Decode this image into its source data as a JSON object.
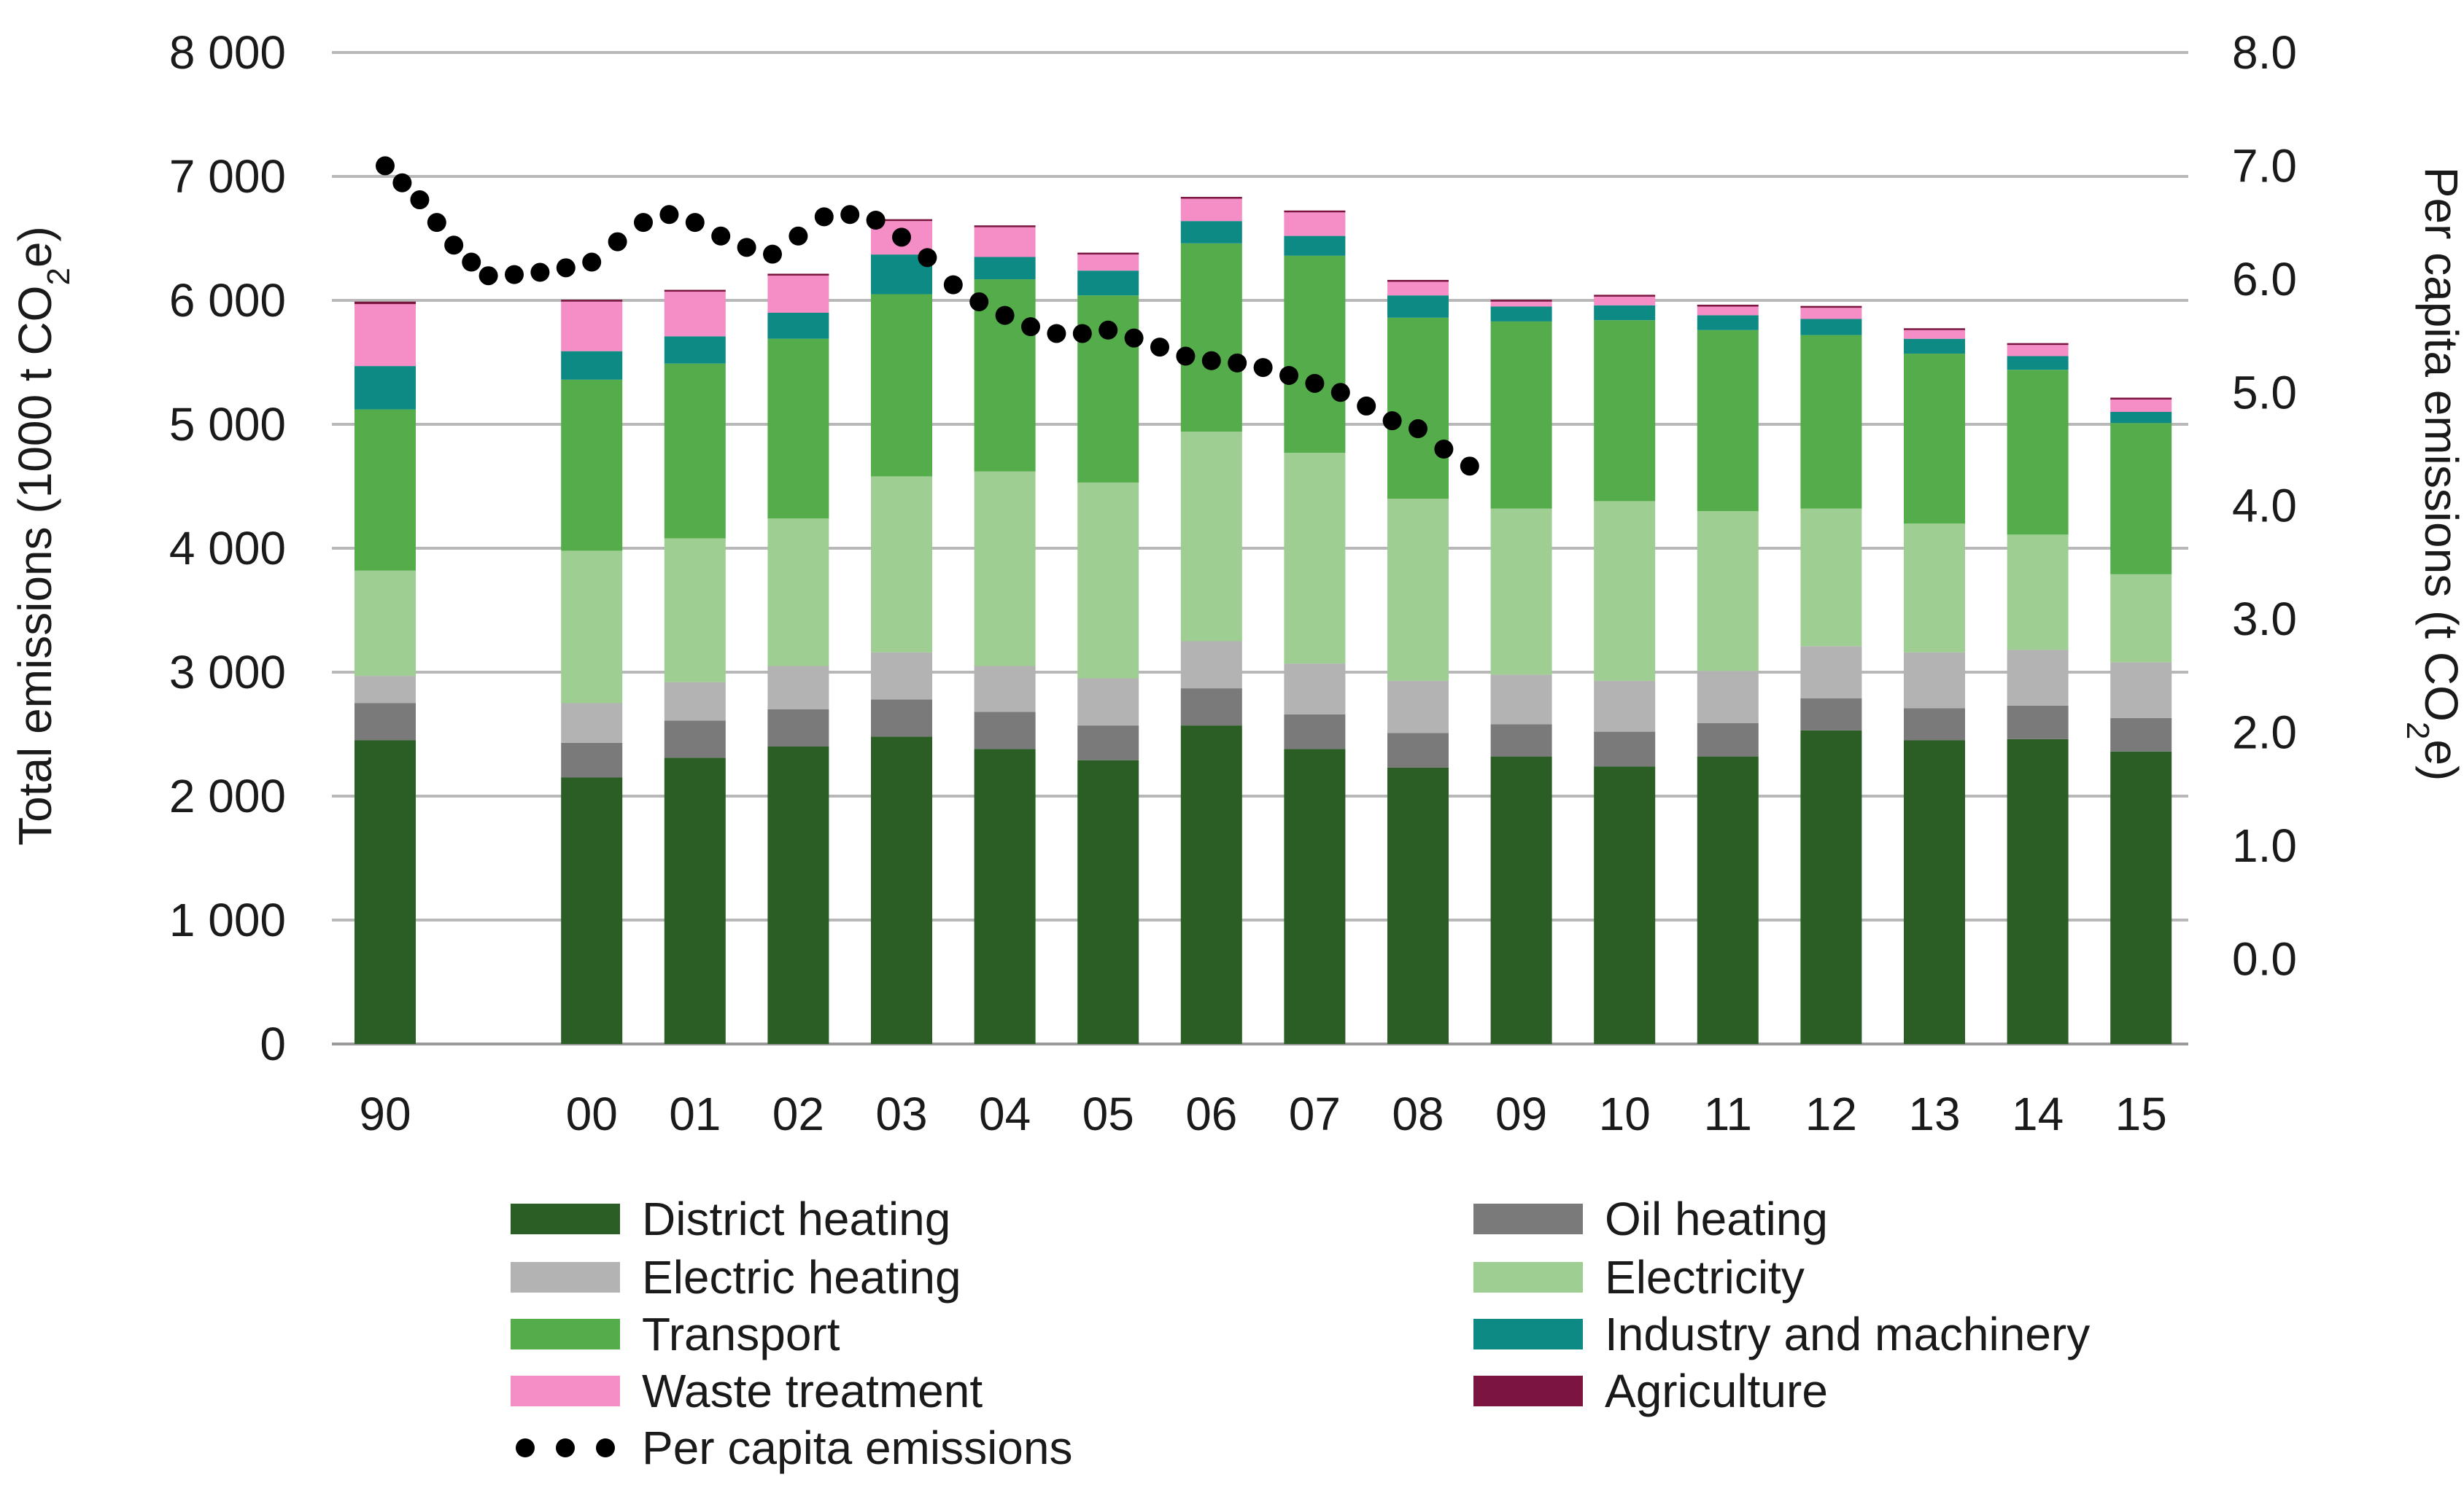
{
  "chart_data": {
    "type": "bar",
    "stacked": true,
    "categories": [
      "90",
      "00",
      "01",
      "02",
      "03",
      "04",
      "05",
      "06",
      "07",
      "08",
      "09",
      "10",
      "11",
      "12",
      "13",
      "14",
      "15"
    ],
    "series": [
      {
        "name": "District heating",
        "color": "#2a5e25",
        "values": [
          2450,
          2150,
          2310,
          2400,
          2480,
          2380,
          2290,
          2570,
          2380,
          2230,
          2320,
          2240,
          2320,
          2530,
          2450,
          2460,
          2360
        ]
      },
      {
        "name": "Oil heating",
        "color": "#7a7a7a",
        "values": [
          300,
          280,
          300,
          300,
          300,
          300,
          280,
          300,
          280,
          280,
          260,
          280,
          270,
          260,
          260,
          270,
          270
        ]
      },
      {
        "name": "Electric heating",
        "color": "#b3b3b3",
        "values": [
          220,
          320,
          310,
          350,
          380,
          370,
          380,
          380,
          410,
          420,
          400,
          410,
          420,
          420,
          450,
          450,
          450
        ]
      },
      {
        "name": "Electricity",
        "color": "#9fce93",
        "values": [
          850,
          1230,
          1160,
          1190,
          1420,
          1570,
          1580,
          1690,
          1700,
          1470,
          1340,
          1450,
          1290,
          1110,
          1040,
          930,
          710
        ]
      },
      {
        "name": "Transport",
        "color": "#55ac4b",
        "values": [
          1300,
          1380,
          1410,
          1450,
          1470,
          1550,
          1510,
          1520,
          1590,
          1460,
          1510,
          1460,
          1460,
          1400,
          1370,
          1330,
          1220
        ]
      },
      {
        "name": "Industry and machinery",
        "color": "#0e8a84",
        "values": [
          350,
          230,
          220,
          210,
          320,
          180,
          200,
          180,
          160,
          180,
          120,
          120,
          120,
          130,
          120,
          110,
          90
        ]
      },
      {
        "name": "Waste treatment",
        "color": "#f58ec6",
        "values": [
          500,
          400,
          360,
          300,
          270,
          240,
          130,
          180,
          190,
          110,
          40,
          70,
          70,
          90,
          70,
          90,
          100
        ]
      },
      {
        "name": "Agriculture",
        "color": "#7c1440",
        "values": [
          20,
          15,
          15,
          15,
          15,
          15,
          15,
          15,
          15,
          15,
          15,
          15,
          15,
          15,
          15,
          15,
          15
        ]
      }
    ],
    "per_capita": {
      "name": "Per capita emissions",
      "color": "#000000",
      "points": [
        {
          "x": 0,
          "y": 7.0
        },
        {
          "x": 0.33,
          "y": 6.85
        },
        {
          "x": 0.67,
          "y": 6.7
        },
        {
          "x": 1.0,
          "y": 6.5
        },
        {
          "x": 1.33,
          "y": 6.3
        },
        {
          "x": 1.67,
          "y": 6.15
        },
        {
          "x": 2,
          "y": 6.03
        },
        {
          "x": 2.5,
          "y": 6.04
        },
        {
          "x": 3,
          "y": 6.06
        },
        {
          "x": 3.5,
          "y": 6.1
        },
        {
          "x": 4,
          "y": 6.15
        },
        {
          "x": 4.5,
          "y": 6.33
        },
        {
          "x": 5,
          "y": 6.5
        },
        {
          "x": 5.5,
          "y": 6.57
        },
        {
          "x": 6,
          "y": 6.5
        },
        {
          "x": 6.5,
          "y": 6.38
        },
        {
          "x": 7,
          "y": 6.28
        },
        {
          "x": 7.5,
          "y": 6.22
        },
        {
          "x": 8,
          "y": 6.38
        },
        {
          "x": 8.5,
          "y": 6.55
        },
        {
          "x": 9,
          "y": 6.57
        },
        {
          "x": 9.5,
          "y": 6.52
        },
        {
          "x": 10,
          "y": 6.37
        },
        {
          "x": 10.5,
          "y": 6.19
        },
        {
          "x": 11,
          "y": 5.95
        },
        {
          "x": 11.5,
          "y": 5.8
        },
        {
          "x": 12,
          "y": 5.68
        },
        {
          "x": 12.5,
          "y": 5.58
        },
        {
          "x": 13,
          "y": 5.52
        },
        {
          "x": 13.5,
          "y": 5.52
        },
        {
          "x": 14,
          "y": 5.55
        },
        {
          "x": 14.5,
          "y": 5.48
        },
        {
          "x": 15,
          "y": 5.4
        },
        {
          "x": 15.5,
          "y": 5.32
        },
        {
          "x": 16,
          "y": 5.28
        },
        {
          "x": 16.5,
          "y": 5.26
        },
        {
          "x": 17,
          "y": 5.22
        },
        {
          "x": 17.5,
          "y": 5.15
        },
        {
          "x": 18,
          "y": 5.08
        },
        {
          "x": 18.5,
          "y": 5.0
        },
        {
          "x": 19,
          "y": 4.88
        },
        {
          "x": 19.5,
          "y": 4.75
        },
        {
          "x": 20,
          "y": 4.68
        },
        {
          "x": 20.5,
          "y": 4.5
        },
        {
          "x": 21,
          "y": 4.35
        }
      ]
    },
    "ylabel": "Total emissions (1000 t CO",
    "ylabel_sub": "2",
    "ylabel_end": "e)",
    "ylim": [
      0,
      8000
    ],
    "yticks": [
      "0",
      "1 000",
      "2 000",
      "3 000",
      "4 000",
      "5 000",
      "6 000",
      "7 000",
      "8 000"
    ],
    "y2label": "Per capita emissions (t CO",
    "y2label_sub": "2",
    "y2label_end": "e)",
    "y2lim": [
      -0.75,
      8.0
    ],
    "y2ticks": [
      "0.0",
      "1.0",
      "2.0",
      "3.0",
      "4.0",
      "5.0",
      "6.0",
      "7.0",
      "8.0"
    ],
    "gridlines": true,
    "legend_position": "bottom"
  }
}
